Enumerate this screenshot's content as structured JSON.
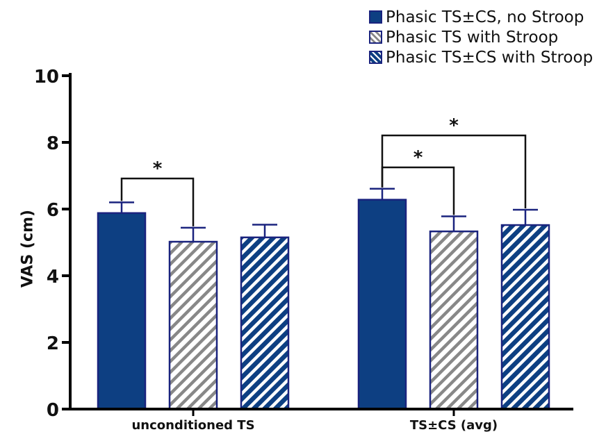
{
  "chart_data": {
    "type": "bar",
    "categories": [
      "unconditioned TS",
      "TS±CS (avg)"
    ],
    "series": [
      {
        "name": "Phasic TS±CS, no Stroop",
        "values": [
          5.88,
          6.28
        ],
        "errors": [
          0.32,
          0.33
        ],
        "color": "#0d3f82",
        "pattern": "solid"
      },
      {
        "name": "Phasic TS with Stroop",
        "values": [
          5.02,
          5.33
        ],
        "errors": [
          0.42,
          0.45
        ],
        "color": "#888888",
        "pattern": "hatch-gray"
      },
      {
        "name": "Phasic TS±CS with Stroop",
        "values": [
          5.15,
          5.52
        ],
        "errors": [
          0.38,
          0.46
        ],
        "color": "#0d3f82",
        "pattern": "hatch-blue"
      }
    ],
    "significance": [
      {
        "category": 0,
        "from_series": 0,
        "to_series": 1,
        "label": "*"
      },
      {
        "category": 1,
        "from_series": 0,
        "to_series": 1,
        "label": "*"
      },
      {
        "category": 1,
        "from_series": 0,
        "to_series": 2,
        "label": "*"
      }
    ],
    "ylabel": "VAS (cm)",
    "xlabel": "",
    "ylim": [
      0,
      10
    ],
    "yticks": [
      0,
      2,
      4,
      6,
      8,
      10
    ],
    "legend_position": "top-right",
    "grid": false
  }
}
